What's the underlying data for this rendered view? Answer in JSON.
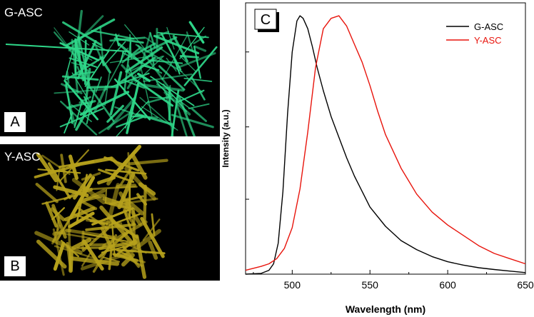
{
  "panels": {
    "a": {
      "title": "G-ASC",
      "letter": "A",
      "color": "#2fd88a"
    },
    "b": {
      "title": "Y-ASC",
      "letter": "B",
      "color": "#b7a21c"
    }
  },
  "chart_data": {
    "type": "line",
    "panel_letter": "C",
    "xlabel": "Wavelength (nm)",
    "ylabel": "Intensity (a.u.)",
    "xlim": [
      470,
      650
    ],
    "ylim": [
      0,
      1.05
    ],
    "xticks": [
      500,
      550,
      600,
      650
    ],
    "yticks": [
      0.29,
      0.57,
      0.86
    ],
    "grid": false,
    "legend_position": "top-right",
    "series": [
      {
        "name": "G-ASC",
        "color": "#000000",
        "x": [
          470,
          480,
          485,
          488,
          491,
          494,
          497,
          500,
          503,
          505,
          507,
          510,
          513,
          516,
          520,
          525,
          530,
          535,
          540,
          545,
          550,
          560,
          570,
          580,
          590,
          600,
          610,
          620,
          630,
          640,
          650
        ],
        "y": [
          0.0,
          0.003,
          0.015,
          0.04,
          0.12,
          0.32,
          0.62,
          0.86,
          0.98,
          1.0,
          0.99,
          0.95,
          0.88,
          0.8,
          0.71,
          0.61,
          0.53,
          0.45,
          0.38,
          0.32,
          0.26,
          0.185,
          0.13,
          0.095,
          0.068,
          0.048,
          0.035,
          0.025,
          0.018,
          0.012,
          0.006
        ]
      },
      {
        "name": "Y-ASC",
        "color": "#e8140c",
        "x": [
          470,
          480,
          485,
          490,
          495,
          500,
          505,
          510,
          515,
          520,
          525,
          530,
          535,
          540,
          545,
          550,
          555,
          560,
          570,
          580,
          590,
          600,
          610,
          620,
          630,
          640,
          650
        ],
        "y": [
          0.015,
          0.03,
          0.04,
          0.06,
          0.1,
          0.18,
          0.33,
          0.55,
          0.8,
          0.95,
          0.99,
          1.0,
          0.96,
          0.89,
          0.82,
          0.73,
          0.63,
          0.54,
          0.41,
          0.31,
          0.24,
          0.19,
          0.15,
          0.11,
          0.08,
          0.06,
          0.04
        ]
      }
    ]
  }
}
